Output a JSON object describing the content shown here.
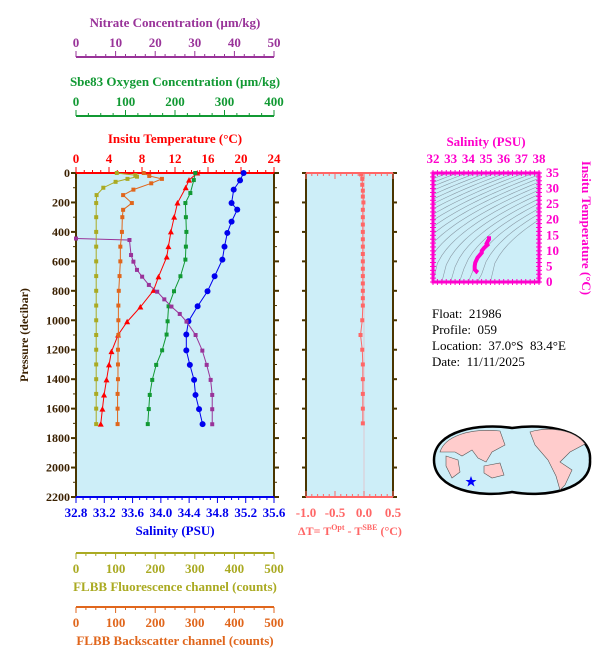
{
  "colors": {
    "bg": "#cdeef8",
    "frame": "#4a3500",
    "temp": "#ff0000",
    "sal": "#0000ee",
    "oxy": "#119933",
    "nit": "#993399",
    "fluor": "#aaaa22",
    "back": "#e0661c",
    "dT": "#ff6666",
    "ts": "#ff00cc",
    "land": "#ffcccc",
    "star": "#0000ff"
  },
  "info": {
    "float": "Float:  21986",
    "profile": "Profile:  059",
    "location": "Location:  37.0°S  83.4°E",
    "date": "Date:  11/11/2025"
  },
  "chart_data": [
    {
      "type": "line",
      "title": "",
      "ylabel": "Pressure (decibar)",
      "ylim": [
        0,
        2200
      ],
      "yticks": [
        0,
        200,
        400,
        600,
        800,
        1000,
        1200,
        1400,
        1600,
        1800,
        2000,
        2200
      ],
      "axes": {
        "nitrate": {
          "label": "Nitrate Concentration (µm/kg)",
          "range": [
            0,
            50
          ],
          "ticks": [
            0,
            10,
            20,
            30,
            40,
            50
          ],
          "position": "top"
        },
        "oxygen": {
          "label": "Sbe83 Oxygen Concentration (µm/kg)",
          "range": [
            0,
            400
          ],
          "ticks": [
            0,
            100,
            200,
            300,
            400
          ],
          "position": "top"
        },
        "temp": {
          "label": "Insitu Temperature (°C)",
          "range": [
            0,
            24
          ],
          "ticks": [
            0,
            4,
            8,
            12,
            16,
            20,
            24
          ],
          "position": "top"
        },
        "sal": {
          "label": "Salinity (PSU)",
          "range": [
            32.8,
            35.6
          ],
          "ticks": [
            "32.8",
            "33.2",
            "33.6",
            "34.0",
            "34.4",
            "34.8",
            "35.2",
            "35.6"
          ],
          "position": "bottom"
        },
        "fluor": {
          "label": "FLBB Fluorescence channel (counts)",
          "range": [
            0,
            500
          ],
          "ticks": [
            0,
            100,
            200,
            300,
            400,
            500
          ],
          "position": "bottom"
        },
        "back": {
          "label": "FLBB Backscatter channel (counts)",
          "range": [
            0,
            500
          ],
          "ticks": [
            0,
            100,
            200,
            300,
            400,
            500
          ],
          "position": "bottom"
        }
      },
      "series": [
        {
          "axis": "temp",
          "marker": "triangle",
          "p": [
            0,
            48,
            100,
            204,
            300,
            400,
            500,
            570,
            705,
            797,
            910,
            1010,
            1100,
            1213,
            1303,
            1405,
            1507,
            1603,
            1705
          ],
          "v": [
            14.7,
            13.7,
            13.3,
            12.3,
            11.9,
            11.5,
            11.2,
            11.0,
            10.0,
            9.4,
            7.8,
            6.2,
            5.1,
            4.3,
            4.0,
            3.7,
            3.4,
            3.2,
            3.0
          ]
        },
        {
          "axis": "sal",
          "marker": "circle",
          "p": [
            0,
            50,
            113,
            204,
            249,
            330,
            407,
            500,
            588,
            701,
            803,
            905,
            1007,
            1097,
            1204,
            1303,
            1405,
            1507,
            1603,
            1705
          ],
          "v": [
            35.17,
            35.12,
            35.03,
            35.0,
            35.08,
            35.0,
            34.94,
            34.9,
            34.87,
            34.76,
            34.66,
            34.52,
            34.39,
            34.36,
            34.36,
            34.41,
            34.47,
            34.49,
            34.54,
            34.59
          ]
        },
        {
          "axis": "oxy",
          "marker": "square",
          "p": [
            0,
            48,
            136,
            204,
            300,
            400,
            500,
            588,
            701,
            803,
            905,
            1007,
            1097,
            1204,
            1303,
            1405,
            1507,
            1603,
            1705
          ],
          "v": [
            241,
            238,
            231,
            221,
            222,
            223,
            222,
            221,
            211,
            198,
            187,
            185,
            183,
            174,
            162,
            154,
            149,
            147,
            145
          ]
        },
        {
          "axis": "nit",
          "marker": "square",
          "p": [
            445,
            455,
            557,
            602,
            658,
            704,
            760,
            806,
            858,
            907,
            957,
            1009,
            1100,
            1206,
            1303,
            1405,
            1507,
            1604,
            1706
          ],
          "v": [
            0,
            13.5,
            13.9,
            14.5,
            15.4,
            16.7,
            18.4,
            20.5,
            22.3,
            24.1,
            26.2,
            27.9,
            30.2,
            31.9,
            33.0,
            34.0,
            34.4,
            34.4,
            34.4
          ]
        },
        {
          "axis": "fluor",
          "marker": "square",
          "p": [
            0,
            15,
            25,
            40,
            60,
            100,
            150,
            204,
            300,
            400,
            500,
            600,
            700,
            800,
            900,
            1000,
            1100,
            1200,
            1300,
            1400,
            1500,
            1600,
            1705
          ],
          "v": [
            103,
            150,
            154,
            130,
            100,
            69,
            52,
            51,
            51,
            51,
            51,
            51,
            51,
            51,
            51,
            51,
            51,
            51,
            51,
            51,
            51,
            51,
            51
          ]
        },
        {
          "axis": "back",
          "marker": "square",
          "p": [
            0,
            20,
            40,
            70,
            113,
            150,
            204,
            250,
            300,
            400,
            500,
            600,
            700,
            800,
            900,
            1000,
            1100,
            1200,
            1300,
            1400,
            1500,
            1600,
            1705
          ],
          "v": [
            171,
            185,
            217,
            190,
            145,
            119,
            141,
            119,
            117,
            116,
            112,
            112,
            110,
            108,
            107,
            107,
            107,
            106,
            106,
            106,
            105,
            105,
            105
          ]
        }
      ]
    },
    {
      "type": "line",
      "xlabel": "ΔT= T",
      "xlabel_sup1": "Opt",
      "xlabel_mid": " - T",
      "xlabel_sup2": "SBE",
      "xlabel_end": " (°C)",
      "xlim": [
        -1.0,
        0.5
      ],
      "xticks": [
        "-1.0",
        "-0.5",
        "0.0",
        "0.5"
      ],
      "ylim": [
        0,
        2200
      ],
      "p": [
        10,
        40,
        80,
        120,
        160,
        200,
        250,
        300,
        350,
        400,
        450,
        500,
        550,
        600,
        650,
        700,
        750,
        800,
        850,
        900,
        1000,
        1100,
        1200,
        1300,
        1400,
        1500,
        1600,
        1700
      ],
      "v": [
        -0.05,
        -0.03,
        -0.03,
        -0.02,
        -0.02,
        -0.01,
        -0.02,
        -0.02,
        -0.02,
        -0.02,
        -0.02,
        -0.02,
        -0.02,
        -0.02,
        -0.02,
        -0.02,
        -0.02,
        -0.02,
        -0.02,
        -0.02,
        -0.03,
        -0.06,
        -0.03,
        -0.02,
        -0.02,
        -0.02,
        -0.02,
        -0.02
      ]
    },
    {
      "type": "scatter",
      "xlabel": "Salinity (PSU)",
      "ylabel": "Insitu Temperature (°C)",
      "xlim": [
        32,
        38
      ],
      "ylim": [
        0,
        35
      ],
      "xticks": [
        32,
        33,
        34,
        35,
        36,
        37,
        38
      ],
      "yticks": [
        0,
        5,
        10,
        15,
        20,
        25,
        30,
        35
      ],
      "contours": "density"
    }
  ]
}
